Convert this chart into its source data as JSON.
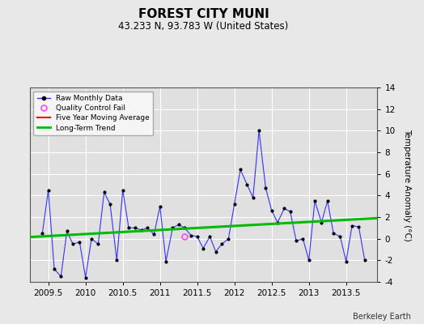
{
  "title": "FOREST CITY MUNI",
  "subtitle": "43.233 N, 93.783 W (United States)",
  "credit": "Berkeley Earth",
  "ylabel": "Temperature Anomaly (°C)",
  "ylim": [
    -4,
    14
  ],
  "yticks": [
    -4,
    -2,
    0,
    2,
    4,
    6,
    8,
    10,
    12,
    14
  ],
  "xlim": [
    2009.25,
    2013.92
  ],
  "xticks": [
    2009.5,
    2010.0,
    2010.5,
    2011.0,
    2011.5,
    2012.0,
    2012.5,
    2013.0,
    2013.5
  ],
  "xticklabels": [
    "2009.5",
    "2010",
    "2010.5",
    "2011",
    "2011.5",
    "2012",
    "2012.5",
    "2013",
    "2013.5"
  ],
  "bg_color": "#e8e8e8",
  "plot_bg_color": "#e0e0e0",
  "grid_color": "#ffffff",
  "raw_x": [
    2009.42,
    2009.5,
    2009.58,
    2009.67,
    2009.75,
    2009.83,
    2009.92,
    2010.0,
    2010.08,
    2010.17,
    2010.25,
    2010.33,
    2010.42,
    2010.5,
    2010.58,
    2010.67,
    2010.75,
    2010.83,
    2010.92,
    2011.0,
    2011.08,
    2011.17,
    2011.25,
    2011.33,
    2011.42,
    2011.5,
    2011.58,
    2011.67,
    2011.75,
    2011.83,
    2011.92,
    2012.0,
    2012.08,
    2012.17,
    2012.25,
    2012.33,
    2012.42,
    2012.5,
    2012.58,
    2012.67,
    2012.75,
    2012.83,
    2012.92,
    2013.0,
    2013.08,
    2013.17,
    2013.25,
    2013.33,
    2013.42,
    2013.5,
    2013.58,
    2013.67,
    2013.75
  ],
  "raw_y": [
    0.5,
    4.5,
    -2.8,
    -3.5,
    0.7,
    -0.5,
    -0.3,
    -3.6,
    0.0,
    -0.5,
    4.3,
    3.2,
    -2.0,
    4.5,
    1.0,
    1.0,
    0.8,
    1.0,
    0.4,
    3.0,
    -2.1,
    1.0,
    1.3,
    1.0,
    0.3,
    0.2,
    -0.9,
    0.2,
    -1.2,
    -0.5,
    0.0,
    3.2,
    6.4,
    5.0,
    3.8,
    10.0,
    4.7,
    2.6,
    1.5,
    2.8,
    2.5,
    -0.2,
    0.0,
    -2.0,
    3.5,
    1.5,
    3.5,
    0.5,
    0.2,
    -2.1,
    1.2,
    1.1,
    -2.0
  ],
  "qc_x": [
    2011.33
  ],
  "qc_y": [
    0.2
  ],
  "trend_x": [
    2009.25,
    2013.92
  ],
  "trend_y": [
    0.15,
    1.9
  ],
  "line_color": "#3333ff",
  "marker_color": "#000000",
  "trend_color": "#00bb00",
  "moving_avg_color": "#ff0000",
  "qc_color": "#ff44ff",
  "legend_bg": "#f5f5f5"
}
